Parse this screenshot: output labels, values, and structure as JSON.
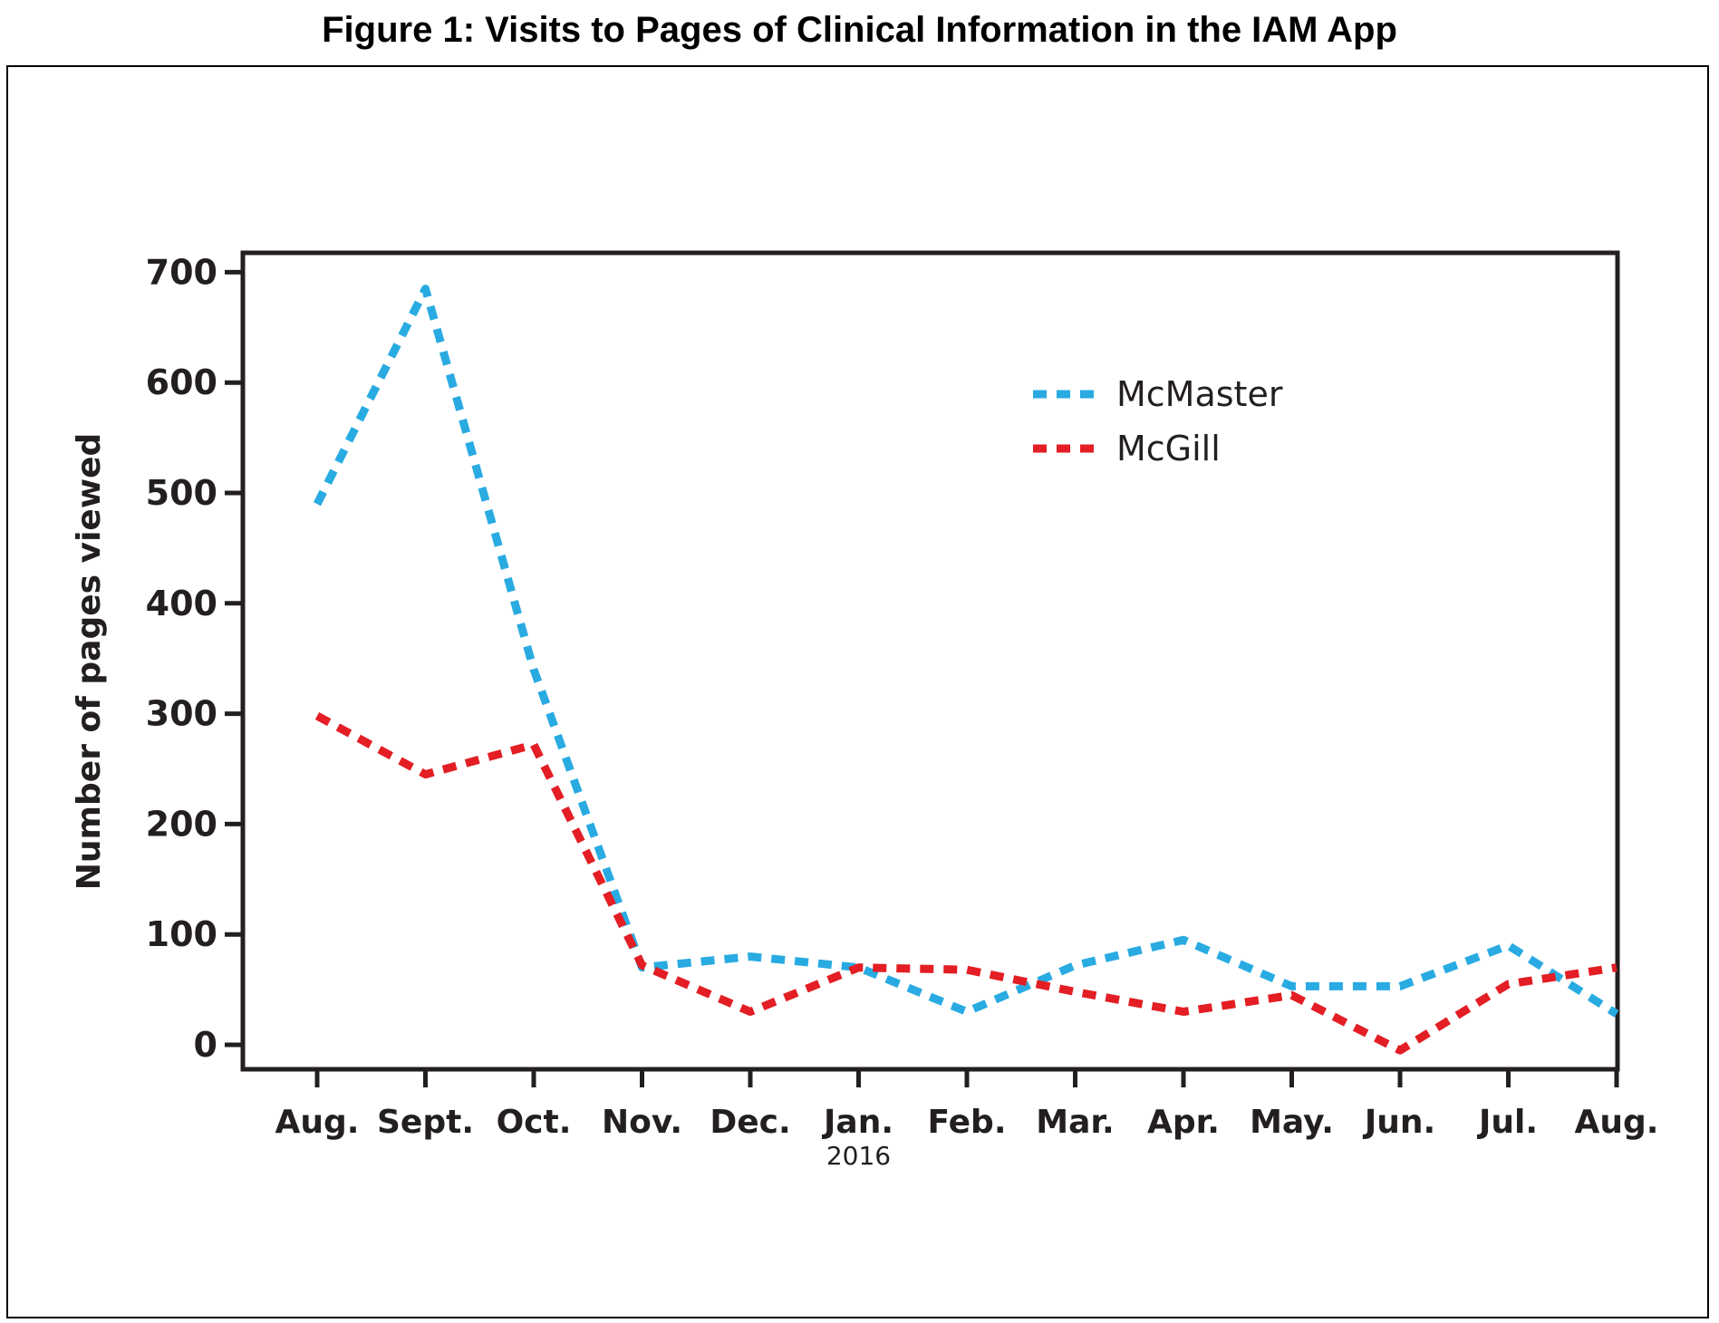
{
  "figure_title": "Figure 1: Visits to Pages of Clinical Information in the IAM App",
  "chart_data": {
    "type": "line",
    "title": "",
    "xlabel": "",
    "ylabel": "Number of pages viewed",
    "categories": [
      "Aug.",
      "Sept.",
      "Oct.",
      "Nov.",
      "Dec.",
      "Jan.",
      "Feb.",
      "Mar.",
      "Apr.",
      "May.",
      "Jun.",
      "Jul.",
      "Aug."
    ],
    "category_sublabels": [
      {
        "category_index": 5,
        "text": "2016"
      }
    ],
    "yticks": [
      0,
      100,
      200,
      300,
      400,
      500,
      600,
      700
    ],
    "ylim": [
      -20,
      720
    ],
    "grid": false,
    "legend_placement": "top-right",
    "series": [
      {
        "name": "McMaster",
        "color": "#29abe2",
        "line_style": "dashed",
        "values": [
          490,
          685,
          340,
          70,
          80,
          70,
          30,
          72,
          95,
          53,
          53,
          90,
          28
        ]
      },
      {
        "name": "McGill",
        "color": "#e31e24",
        "line_style": "dashed",
        "values": [
          298,
          245,
          272,
          72,
          30,
          70,
          68,
          48,
          30,
          45,
          -5,
          55,
          70
        ]
      }
    ]
  }
}
